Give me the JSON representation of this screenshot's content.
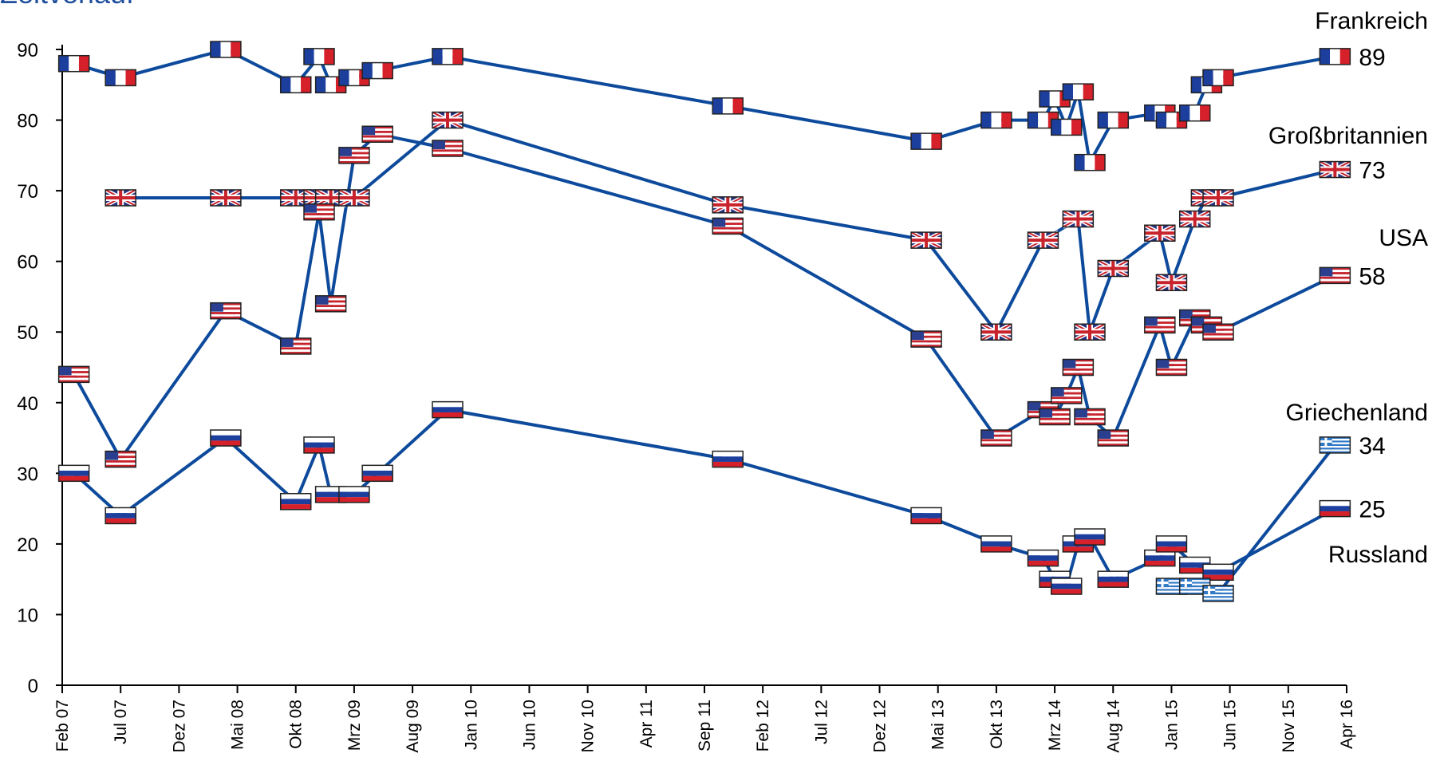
{
  "title_fragment": "Zeitverlauf",
  "chart_data": {
    "type": "line",
    "title": "",
    "xlabel": "",
    "ylabel": "",
    "ylim": [
      0,
      90
    ],
    "yticks": [
      0,
      10,
      20,
      30,
      40,
      50,
      60,
      70,
      80,
      90
    ],
    "xlim": [
      "2007-02",
      "2016-04"
    ],
    "xticks": [
      "Feb 07",
      "Jul 07",
      "Dez 07",
      "Mai 08",
      "Okt 08",
      "Mrz 09",
      "Aug 09",
      "Jan 10",
      "Jun 10",
      "Nov 10",
      "Apr 11",
      "Sep 11",
      "Feb 12",
      "Jul 12",
      "Dez 12",
      "Mai 13",
      "Okt 13",
      "Mrz 14",
      "Aug 14",
      "Jan 15",
      "Jun 15",
      "Nov 15",
      "Apr 16"
    ],
    "grid": false,
    "legend": "none",
    "series": [
      {
        "name": "Frankreich",
        "flag": "fr",
        "color": "#0d4a9c",
        "end_value": "89",
        "points": [
          [
            "2007-03",
            88
          ],
          [
            "2007-07",
            86
          ],
          [
            "2008-04",
            90
          ],
          [
            "2008-10",
            85
          ],
          [
            "2008-12",
            89
          ],
          [
            "2009-01",
            85
          ],
          [
            "2009-03",
            86
          ],
          [
            "2009-05",
            87
          ],
          [
            "2009-11",
            89
          ],
          [
            "2011-11",
            82
          ],
          [
            "2013-04",
            77
          ],
          [
            "2013-10",
            80
          ],
          [
            "2014-02",
            80
          ],
          [
            "2014-03",
            83
          ],
          [
            "2014-04",
            79
          ],
          [
            "2014-05",
            84
          ],
          [
            "2014-06",
            74
          ],
          [
            "2014-08",
            80
          ],
          [
            "2014-12",
            81
          ],
          [
            "2015-01",
            80
          ],
          [
            "2015-03",
            81
          ],
          [
            "2015-04",
            85
          ],
          [
            "2015-05",
            86
          ],
          [
            "2016-03",
            89
          ]
        ]
      },
      {
        "name": "Großbritannien",
        "flag": "gb",
        "color": "#0d4a9c",
        "end_value": "73",
        "points": [
          [
            "2007-07",
            69
          ],
          [
            "2008-04",
            69
          ],
          [
            "2008-10",
            69
          ],
          [
            "2008-12",
            69
          ],
          [
            "2009-01",
            69
          ],
          [
            "2009-03",
            69
          ],
          [
            "2009-11",
            80
          ],
          [
            "2011-11",
            68
          ],
          [
            "2013-04",
            63
          ],
          [
            "2013-10",
            50
          ],
          [
            "2014-02",
            63
          ],
          [
            "2014-05",
            66
          ],
          [
            "2014-06",
            50
          ],
          [
            "2014-08",
            59
          ],
          [
            "2014-12",
            64
          ],
          [
            "2015-01",
            57
          ],
          [
            "2015-03",
            66
          ],
          [
            "2015-04",
            69
          ],
          [
            "2015-05",
            69
          ],
          [
            "2016-03",
            73
          ]
        ]
      },
      {
        "name": "USA",
        "flag": "us",
        "color": "#0d4a9c",
        "end_value": "58",
        "points": [
          [
            "2007-03",
            44
          ],
          [
            "2007-07",
            32
          ],
          [
            "2008-04",
            53
          ],
          [
            "2008-10",
            48
          ],
          [
            "2008-12",
            67
          ],
          [
            "2009-01",
            54
          ],
          [
            "2009-03",
            75
          ],
          [
            "2009-05",
            78
          ],
          [
            "2009-11",
            76
          ],
          [
            "2011-11",
            65
          ],
          [
            "2013-04",
            49
          ],
          [
            "2013-10",
            35
          ],
          [
            "2014-02",
            39
          ],
          [
            "2014-03",
            38
          ],
          [
            "2014-04",
            41
          ],
          [
            "2014-05",
            45
          ],
          [
            "2014-06",
            38
          ],
          [
            "2014-08",
            35
          ],
          [
            "2014-12",
            51
          ],
          [
            "2015-01",
            45
          ],
          [
            "2015-03",
            52
          ],
          [
            "2015-04",
            51
          ],
          [
            "2015-05",
            50
          ],
          [
            "2016-03",
            58
          ]
        ]
      },
      {
        "name": "Russland",
        "flag": "ru",
        "color": "#0d4a9c",
        "end_value": "25",
        "points": [
          [
            "2007-03",
            30
          ],
          [
            "2007-07",
            24
          ],
          [
            "2008-04",
            35
          ],
          [
            "2008-10",
            26
          ],
          [
            "2008-12",
            34
          ],
          [
            "2009-01",
            27
          ],
          [
            "2009-03",
            27
          ],
          [
            "2009-05",
            30
          ],
          [
            "2009-11",
            39
          ],
          [
            "2011-11",
            32
          ],
          [
            "2013-04",
            24
          ],
          [
            "2013-10",
            20
          ],
          [
            "2014-02",
            18
          ],
          [
            "2014-03",
            15
          ],
          [
            "2014-04",
            14
          ],
          [
            "2014-05",
            20
          ],
          [
            "2014-06",
            21
          ],
          [
            "2014-08",
            15
          ],
          [
            "2014-12",
            18
          ],
          [
            "2015-01",
            20
          ],
          [
            "2015-03",
            17
          ],
          [
            "2015-05",
            16
          ],
          [
            "2016-03",
            25
          ]
        ]
      },
      {
        "name": "Griechenland",
        "flag": "gr",
        "color": "#0d4a9c",
        "end_value": "34",
        "points": [
          [
            "2015-01",
            14
          ],
          [
            "2015-03",
            14
          ],
          [
            "2015-05",
            13
          ],
          [
            "2016-03",
            34
          ]
        ]
      }
    ]
  }
}
